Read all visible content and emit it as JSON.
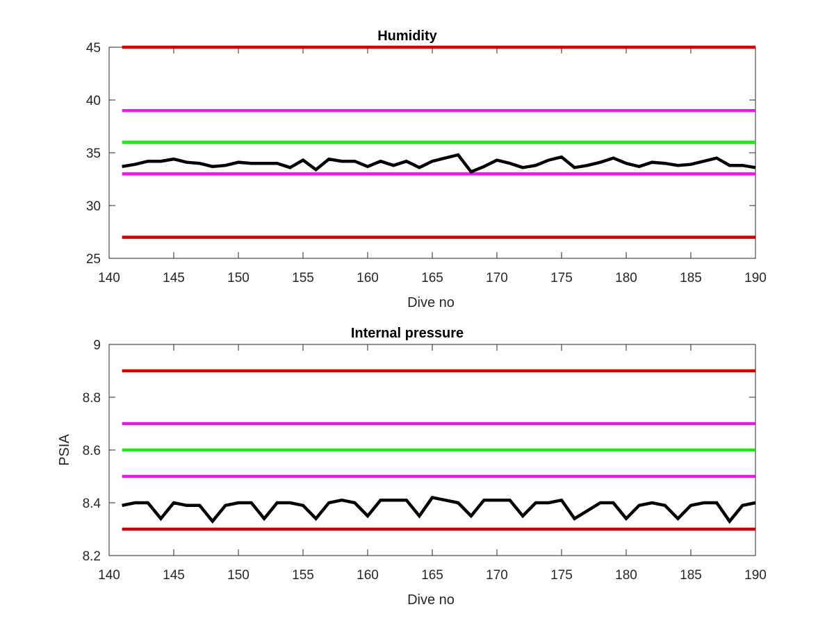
{
  "chart_data": [
    {
      "type": "line",
      "title": "Humidity",
      "xlabel": "Dive no",
      "ylabel": "",
      "xlim": [
        140,
        190
      ],
      "ylim": [
        25,
        45
      ],
      "xticks": [
        "140",
        "145",
        "150",
        "155",
        "160",
        "165",
        "170",
        "175",
        "180",
        "185",
        "190"
      ],
      "yticks": [
        "25",
        "30",
        "35",
        "40",
        "45"
      ],
      "grid": false,
      "thresholds": [
        {
          "y": 45,
          "color": "#cc0000"
        },
        {
          "y": 39,
          "color": "#e61be6"
        },
        {
          "y": 36,
          "color": "#22e61b"
        },
        {
          "y": 33,
          "color": "#e61be6"
        },
        {
          "y": 27,
          "color": "#cc0000"
        }
      ],
      "series": [
        {
          "color": "#000000",
          "x": [
            141,
            142,
            143,
            144,
            145,
            146,
            147,
            148,
            149,
            150,
            151,
            152,
            153,
            154,
            155,
            156,
            157,
            158,
            159,
            160,
            161,
            162,
            163,
            164,
            165,
            166,
            167,
            168,
            169,
            170,
            171,
            172,
            173,
            174,
            175,
            176,
            177,
            178,
            179,
            180,
            181,
            182,
            183,
            184,
            185,
            186,
            187,
            188,
            189,
            190
          ],
          "y": [
            33.7,
            33.9,
            34.2,
            34.2,
            34.4,
            34.1,
            34.0,
            33.7,
            33.8,
            34.1,
            34.0,
            34.0,
            34.0,
            33.6,
            34.3,
            33.4,
            34.4,
            34.2,
            34.2,
            33.7,
            34.2,
            33.8,
            34.2,
            33.6,
            34.2,
            34.5,
            34.8,
            33.2,
            33.7,
            34.3,
            34.0,
            33.6,
            33.8,
            34.3,
            34.6,
            33.6,
            33.8,
            34.1,
            34.5,
            34.0,
            33.7,
            34.1,
            34.0,
            33.8,
            33.9,
            34.2,
            34.5,
            33.8,
            33.8,
            33.6
          ]
        }
      ]
    },
    {
      "type": "line",
      "title": "Internal pressure",
      "xlabel": "Dive no",
      "ylabel": "PSIA",
      "xlim": [
        140,
        190
      ],
      "ylim": [
        8.2,
        9
      ],
      "xticks": [
        "140",
        "145",
        "150",
        "155",
        "160",
        "165",
        "170",
        "175",
        "180",
        "185",
        "190"
      ],
      "yticks": [
        "8.2",
        "8.4",
        "8.6",
        "8.8",
        "9"
      ],
      "grid": false,
      "thresholds": [
        {
          "y": 8.9,
          "color": "#cc0000"
        },
        {
          "y": 8.7,
          "color": "#e61be6"
        },
        {
          "y": 8.6,
          "color": "#22e61b"
        },
        {
          "y": 8.5,
          "color": "#e61be6"
        },
        {
          "y": 8.3,
          "color": "#cc0000"
        }
      ],
      "series": [
        {
          "color": "#000000",
          "x": [
            141,
            142,
            143,
            144,
            145,
            146,
            147,
            148,
            149,
            150,
            151,
            152,
            153,
            154,
            155,
            156,
            157,
            158,
            159,
            160,
            161,
            162,
            163,
            164,
            165,
            166,
            167,
            168,
            169,
            170,
            171,
            172,
            173,
            174,
            175,
            176,
            177,
            178,
            179,
            180,
            181,
            182,
            183,
            184,
            185,
            186,
            187,
            188,
            189,
            190
          ],
          "y": [
            8.39,
            8.4,
            8.4,
            8.34,
            8.4,
            8.39,
            8.39,
            8.33,
            8.39,
            8.4,
            8.4,
            8.34,
            8.4,
            8.4,
            8.39,
            8.34,
            8.4,
            8.41,
            8.4,
            8.35,
            8.41,
            8.41,
            8.41,
            8.35,
            8.42,
            8.41,
            8.4,
            8.35,
            8.41,
            8.41,
            8.41,
            8.35,
            8.4,
            8.4,
            8.41,
            8.34,
            8.37,
            8.4,
            8.4,
            8.34,
            8.39,
            8.4,
            8.39,
            8.34,
            8.39,
            8.4,
            8.4,
            8.33,
            8.39,
            8.4
          ]
        }
      ]
    }
  ]
}
